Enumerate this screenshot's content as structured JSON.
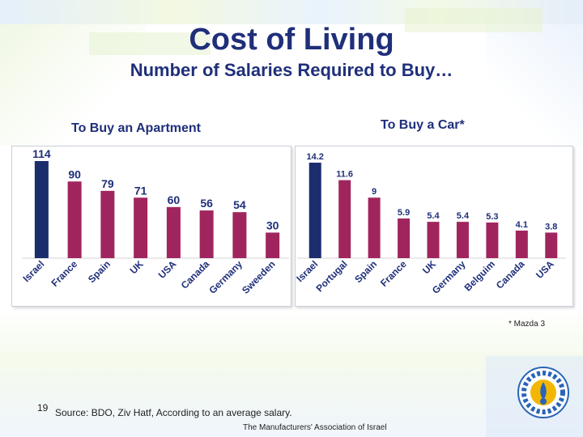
{
  "slide": {
    "title": "Cost of Living",
    "subtitle": "Number of Salaries Required to Buy…",
    "footnote": "* Mazda 3",
    "page_number": "19",
    "source": "Source: BDO, Ziv Hatf, According to an average salary.",
    "organization": "The Manufacturers' Association of Israel"
  },
  "colors": {
    "highlight_bar": "#1c2d6e",
    "bar": "#a0255e",
    "label": "#1f2f7a",
    "title": "#1f2f7a"
  },
  "chart_data": [
    {
      "type": "bar",
      "title": "To Buy an Apartment",
      "categories": [
        "Israel",
        "France",
        "Spain",
        "UK",
        "USA",
        "Canada",
        "Germany",
        "Sweeden"
      ],
      "values": [
        114,
        90,
        79,
        71,
        60,
        56,
        54,
        30
      ],
      "data_labels": [
        "114",
        "90",
        "79",
        "71",
        "60",
        "56",
        "54",
        "30"
      ],
      "highlight_index": 0,
      "ylim": [
        0,
        114
      ]
    },
    {
      "type": "bar",
      "title": "To Buy a Car*",
      "categories": [
        "Israel",
        "Portugal",
        "Spain",
        "France",
        "UK",
        "Germany",
        "Belguim",
        "Canada",
        "USA"
      ],
      "values": [
        14.2,
        11.6,
        9,
        5.9,
        5.4,
        5.4,
        5.3,
        4.1,
        3.8
      ],
      "data_labels": [
        "14.2",
        "11.6",
        "9",
        "5.9",
        "5.4",
        "5.4",
        "5.3",
        "4.1",
        "3.8"
      ],
      "highlight_index": 0,
      "ylim": [
        0,
        14.2
      ]
    }
  ]
}
